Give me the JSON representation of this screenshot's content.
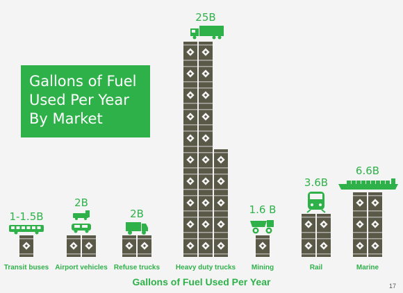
{
  "title_lines": [
    "Gallons of Fuel",
    "Used Per Year",
    "By Market"
  ],
  "subtitle": "Gallons of Fuel Used Per Year",
  "page_number": "17",
  "colors": {
    "accent": "#2fb14a",
    "barrel": "#5a5847",
    "background": "#f4f4f4"
  },
  "chart_data": {
    "type": "bar",
    "title": "Gallons of Fuel Used Per Year By Market",
    "xlabel": "Gallons of Fuel Used Per Year",
    "ylabel": "",
    "categories": [
      "Transit buses",
      "Airport vehicles",
      "Refuse trucks",
      "Heavy duty trucks",
      "Mining",
      "Rail",
      "Marine"
    ],
    "value_labels": [
      "1-1.5B",
      "2B",
      "2B",
      "25B",
      "1.6 B",
      "3.6B",
      "6.6B"
    ],
    "values": [
      1.25,
      2,
      2,
      25,
      1.6,
      3.6,
      6.6
    ],
    "units": "billion gallons",
    "barrel_columns": [
      [
        1
      ],
      [
        1,
        1
      ],
      [
        1,
        1
      ],
      [
        10,
        10,
        5
      ],
      [
        1
      ],
      [
        2,
        2
      ],
      [
        3,
        3
      ]
    ],
    "icons": [
      "bus-icon",
      "airport-vehicle-icon",
      "refuse-truck-icon",
      "semi-truck-icon",
      "mining-truck-icon",
      "locomotive-icon",
      "cargo-ship-icon"
    ]
  }
}
